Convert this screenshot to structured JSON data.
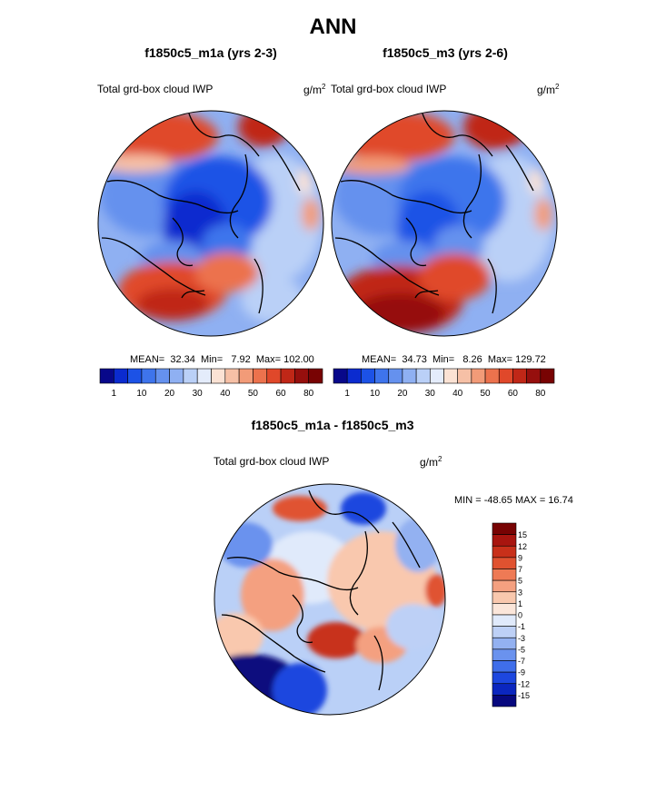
{
  "figure": {
    "title": "ANN"
  },
  "panels": [
    {
      "title": "f1850c5_m1a (yrs 2-3)",
      "variable": "Total grd-box cloud IWP",
      "units_base": "g/m",
      "units_exp": "2",
      "stats": {
        "mean_label": "MEAN=",
        "mean": "32.34",
        "min_label": "Min=",
        "min": "7.92",
        "max_label": "Max=",
        "max": "102.00"
      }
    },
    {
      "title": "f1850c5_m3 (yrs 2-6)",
      "variable": "Total grd-box cloud IWP",
      "units_base": "g/m",
      "units_exp": "2",
      "stats": {
        "mean_label": "MEAN=",
        "mean": "34.73",
        "min_label": "Min=",
        "min": "8.26",
        "max_label": "Max=",
        "max": "129.72"
      }
    },
    {
      "title": "f1850c5_m1a - f1850c5_m3",
      "variable": "Total grd-box cloud IWP",
      "units_base": "g/m",
      "units_exp": "2",
      "minmax": "MIN = -48.65 MAX =  16.74"
    }
  ],
  "chart_data": [
    {
      "type": "heatmap",
      "projection": "north-polar-stereographic",
      "title": "f1850c5_m1a (yrs 2-3)",
      "variable": "Total grd-box cloud IWP",
      "units": "g/m^2",
      "mean": 32.34,
      "min": 7.92,
      "max": 102.0,
      "colorbar": {
        "orientation": "horizontal",
        "tick_labels": [
          "1",
          "10",
          "20",
          "30",
          "40",
          "50",
          "60",
          "80"
        ],
        "colors": [
          "#08088a",
          "#0b2bcf",
          "#1c52e6",
          "#3e74ec",
          "#6591ee",
          "#8fb0f2",
          "#bad0f7",
          "#e4ecfb",
          "#fbe2d4",
          "#f6c0a6",
          "#f29b78",
          "#ec724d",
          "#e0482a",
          "#c02717",
          "#960f0d",
          "#780303"
        ]
      }
    },
    {
      "type": "heatmap",
      "projection": "north-polar-stereographic",
      "title": "f1850c5_m3 (yrs 2-6)",
      "variable": "Total grd-box cloud IWP",
      "units": "g/m^2",
      "mean": 34.73,
      "min": 8.26,
      "max": 129.72,
      "colorbar": {
        "orientation": "horizontal",
        "tick_labels": [
          "1",
          "10",
          "20",
          "30",
          "40",
          "50",
          "60",
          "80"
        ],
        "colors": [
          "#08088a",
          "#0b2bcf",
          "#1c52e6",
          "#3e74ec",
          "#6591ee",
          "#8fb0f2",
          "#bad0f7",
          "#e4ecfb",
          "#fbe2d4",
          "#f6c0a6",
          "#f29b78",
          "#ec724d",
          "#e0482a",
          "#c02717",
          "#960f0d",
          "#780303"
        ]
      }
    },
    {
      "type": "heatmap",
      "projection": "north-polar-stereographic",
      "title": "f1850c5_m1a - f1850c5_m3",
      "variable": "Total grd-box cloud IWP",
      "units": "g/m^2",
      "min": -48.65,
      "max": 16.74,
      "colorbar": {
        "orientation": "vertical",
        "tick_labels": [
          "15",
          "12",
          "9",
          "7",
          "5",
          "3",
          "1",
          "0",
          "-1",
          "-3",
          "-5",
          "-7",
          "-9",
          "-12",
          "-15"
        ],
        "colors": [
          "#780303",
          "#a8150f",
          "#c8301a",
          "#e05230",
          "#ee7a55",
          "#f4a080",
          "#f9c8ae",
          "#fbe6da",
          "#e0eafb",
          "#bdd0f6",
          "#93b1f1",
          "#6a92ee",
          "#3f6eea",
          "#1d47df",
          "#0b26bf",
          "#07087e"
        ]
      }
    }
  ]
}
